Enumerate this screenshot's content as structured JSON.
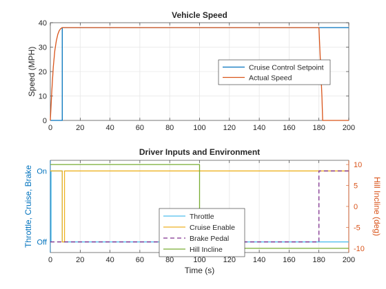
{
  "chart_data": [
    {
      "type": "line",
      "title": "Vehicle Speed",
      "xlabel": "",
      "ylabel": "Speed (MPH)",
      "xlim": [
        0,
        200
      ],
      "ylim": [
        0,
        40
      ],
      "xticks": [
        0,
        20,
        40,
        60,
        80,
        100,
        120,
        140,
        160,
        180,
        200
      ],
      "yticks": [
        0,
        10,
        20,
        30,
        40
      ],
      "grid": true,
      "legend_position": "center-right",
      "series": [
        {
          "name": "Cruise Control Setpoint",
          "color": "#0072BD",
          "x": [
            0,
            8,
            8,
            200
          ],
          "y": [
            0,
            0,
            38,
            38
          ]
        },
        {
          "name": "Actual Speed",
          "color": "#D95319",
          "x": [
            0,
            1,
            2,
            3,
            4,
            5,
            6,
            7,
            8,
            9,
            180,
            182,
            182.5,
            200
          ],
          "y": [
            0,
            12,
            22,
            28.5,
            32.5,
            35.2,
            36.8,
            37.6,
            38,
            38,
            38,
            10,
            0,
            0
          ]
        }
      ]
    },
    {
      "type": "line",
      "title": "Driver Inputs and Environment",
      "xlabel": "Time (s)",
      "ylabel_left": "Throttle, Cruise, Brake",
      "ylabel_right": "Hill Incline (deg)",
      "xlim": [
        0,
        200
      ],
      "ylim_left": [
        -0.15,
        1.15
      ],
      "ylim_right": [
        -11,
        11
      ],
      "xticks": [
        0,
        20,
        40,
        60,
        80,
        100,
        120,
        140,
        160,
        180,
        200
      ],
      "yticks_left": [
        {
          "value": 0,
          "label": "Off"
        },
        {
          "value": 1,
          "label": "On"
        }
      ],
      "yticks_right": [
        -10,
        -5,
        0,
        5,
        10
      ],
      "grid": true,
      "legend_position": "bottom-center",
      "series": [
        {
          "name": "Throttle",
          "color": "#4DBEEE",
          "axis": "left",
          "dash": "solid",
          "x": [
            0,
            0.5,
            0.5,
            8,
            8,
            200
          ],
          "y": [
            0,
            0,
            1,
            1,
            0,
            0
          ]
        },
        {
          "name": "Cruise Enable",
          "color": "#EDB120",
          "axis": "left",
          "dash": "solid",
          "x": [
            0,
            8,
            8,
            9.5,
            9.5,
            200
          ],
          "y": [
            1,
            1,
            0,
            0,
            1,
            1
          ]
        },
        {
          "name": "Brake Pedal",
          "color": "#7E2F8E",
          "axis": "left",
          "dash": "dashed",
          "x": [
            0,
            180,
            180,
            200
          ],
          "y": [
            0,
            0,
            1,
            1
          ]
        },
        {
          "name": "Hill Incline",
          "color": "#77AC30",
          "axis": "right",
          "dash": "solid",
          "x": [
            0,
            100,
            100,
            200
          ],
          "y": [
            10,
            10,
            -10,
            -10
          ]
        }
      ]
    }
  ]
}
